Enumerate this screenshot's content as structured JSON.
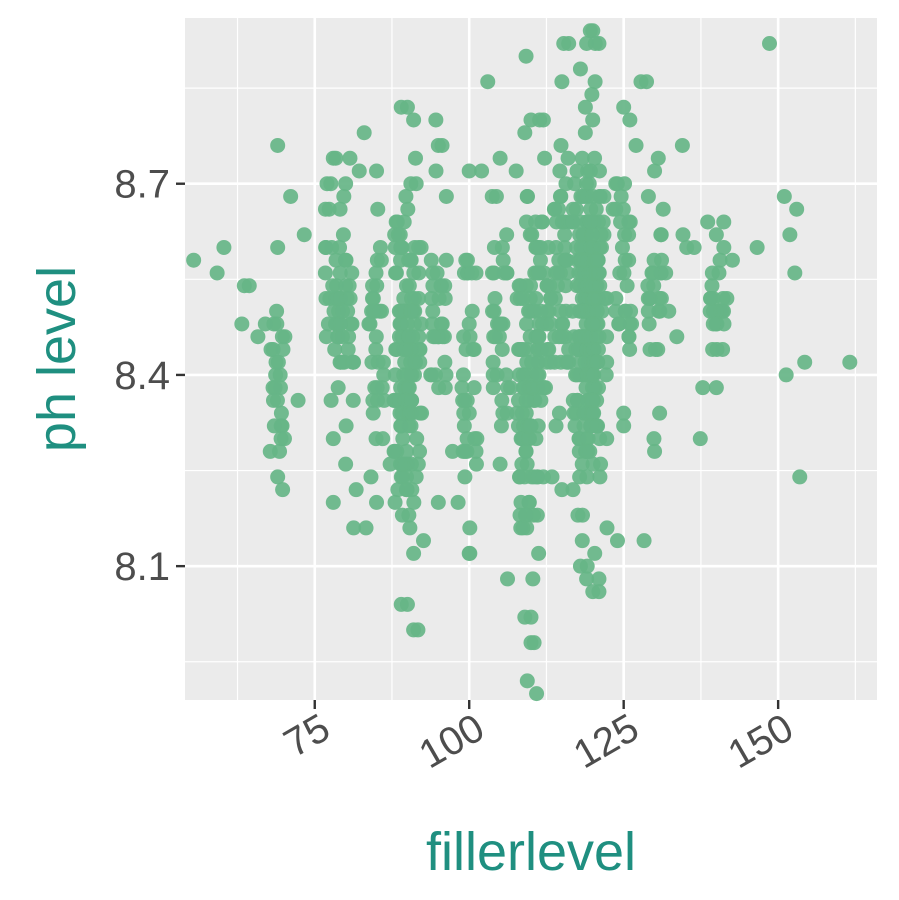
{
  "chart_data": {
    "type": "scatter",
    "xlabel": "fillerlevel",
    "ylabel": "ph level",
    "xlim": [
      54,
      166
    ],
    "ylim": [
      7.89,
      8.96
    ],
    "x_ticks": [
      75,
      100,
      125,
      150
    ],
    "y_ticks": [
      8.1,
      8.4,
      8.7
    ],
    "grid": true,
    "point_color": "#66b587",
    "background_color": "#ebebeb",
    "axis_title_color": "#1f8f80",
    "points": [
      [
        55.4,
        8.58
      ],
      [
        59.2,
        8.56
      ],
      [
        60.3,
        8.6
      ],
      [
        63.2,
        8.48
      ],
      [
        63.6,
        8.54
      ],
      [
        64.4,
        8.54
      ],
      [
        65.8,
        8.46
      ],
      [
        67.0,
        8.48
      ],
      [
        67.8,
        8.28
      ],
      [
        69.0,
        8.76
      ],
      [
        69.3,
        8.28
      ],
      [
        69.8,
        8.22
      ],
      [
        70.1,
        8.3
      ],
      [
        71.1,
        8.68
      ],
      [
        72.3,
        8.36
      ],
      [
        73.3,
        8.62
      ],
      [
        76.8,
        8.6
      ],
      [
        77.6,
        8.7
      ],
      [
        78.4,
        8.74
      ],
      [
        78.0,
        8.2
      ],
      [
        79.1,
        8.66
      ],
      [
        79.5,
        8.5
      ],
      [
        80.7,
        8.74
      ],
      [
        81.3,
        8.16
      ],
      [
        81.7,
        8.22
      ],
      [
        82.2,
        8.72
      ],
      [
        83.0,
        8.78
      ],
      [
        83.3,
        8.16
      ],
      [
        84.1,
        8.24
      ],
      [
        85.2,
        8.66
      ],
      [
        86.0,
        8.3
      ],
      [
        87.2,
        8.26
      ],
      [
        88.0,
        8.2
      ],
      [
        91.0,
        8.12
      ],
      [
        91.7,
        8.0
      ],
      [
        92.6,
        8.14
      ],
      [
        94.6,
        8.8
      ],
      [
        95.6,
        8.76
      ],
      [
        96.3,
        8.68
      ],
      [
        97.3,
        8.28
      ],
      [
        98.2,
        8.2
      ],
      [
        99.3,
        8.24
      ],
      [
        100.1,
        8.16
      ],
      [
        100.1,
        8.12
      ],
      [
        101.1,
        8.28
      ],
      [
        102.0,
        8.72
      ],
      [
        103.0,
        8.86
      ],
      [
        104.4,
        8.68
      ],
      [
        106.2,
        8.08
      ],
      [
        106.7,
        8.38
      ],
      [
        107.6,
        8.72
      ],
      [
        108.0,
        8.44
      ],
      [
        109.2,
        8.9
      ],
      [
        109.4,
        7.92
      ],
      [
        110.0,
        8.02
      ],
      [
        110.3,
        8.08
      ],
      [
        110.5,
        7.98
      ],
      [
        110.9,
        7.9
      ],
      [
        111.4,
        8.8
      ],
      [
        112.2,
        8.74
      ],
      [
        113.4,
        8.24
      ],
      [
        114.6,
        8.34
      ],
      [
        115.3,
        8.92
      ],
      [
        116.1,
        8.92
      ],
      [
        116.8,
        8.22
      ],
      [
        117.6,
        8.18
      ],
      [
        118.3,
        8.14
      ],
      [
        119.1,
        8.1
      ],
      [
        119.6,
        8.94
      ],
      [
        120.4,
        8.92
      ],
      [
        121.0,
        8.06
      ],
      [
        122.3,
        8.16
      ],
      [
        123.3,
        8.66
      ],
      [
        124.0,
        8.14
      ],
      [
        124.8,
        8.6
      ],
      [
        125.0,
        8.32
      ],
      [
        126.0,
        8.8
      ],
      [
        127.0,
        8.76
      ],
      [
        127.8,
        8.86
      ],
      [
        128.3,
        8.14
      ],
      [
        128.7,
        8.86
      ],
      [
        129.0,
        8.68
      ],
      [
        129.9,
        8.3
      ],
      [
        130.6,
        8.74
      ],
      [
        131.4,
        8.66
      ],
      [
        131.8,
        8.56
      ],
      [
        132.3,
        8.5
      ],
      [
        133.6,
        8.46
      ],
      [
        134.5,
        8.76
      ],
      [
        134.6,
        8.62
      ],
      [
        135.2,
        8.6
      ],
      [
        136.4,
        8.6
      ],
      [
        137.4,
        8.3
      ],
      [
        137.8,
        8.38
      ],
      [
        138.6,
        8.64
      ],
      [
        139.0,
        8.5
      ],
      [
        139.5,
        8.48
      ],
      [
        140.1,
        8.44
      ],
      [
        140.6,
        8.58
      ],
      [
        141.2,
        8.64
      ],
      [
        141.7,
        8.52
      ],
      [
        142.6,
        8.58
      ],
      [
        146.6,
        8.6
      ],
      [
        148.6,
        8.92
      ],
      [
        151.0,
        8.68
      ],
      [
        151.3,
        8.4
      ],
      [
        151.9,
        8.62
      ],
      [
        152.7,
        8.56
      ],
      [
        153.0,
        8.66
      ],
      [
        153.5,
        8.24
      ],
      [
        154.3,
        8.42
      ],
      [
        161.6,
        8.42
      ]
    ],
    "column_clusters": [
      {
        "x": 69,
        "count": 22,
        "y_min": 8.24,
        "y_max": 8.6
      },
      {
        "x": 78,
        "count": 28,
        "y_min": 8.3,
        "y_max": 8.74
      },
      {
        "x": 80,
        "count": 28,
        "y_min": 8.26,
        "y_max": 8.7
      },
      {
        "x": 85,
        "count": 30,
        "y_min": 8.2,
        "y_max": 8.72
      },
      {
        "x": 89,
        "count": 42,
        "y_min": 8.04,
        "y_max": 8.82
      },
      {
        "x": 90,
        "count": 50,
        "y_min": 8.04,
        "y_max": 8.82
      },
      {
        "x": 91,
        "count": 40,
        "y_min": 8.0,
        "y_max": 8.8
      },
      {
        "x": 95,
        "count": 30,
        "y_min": 8.2,
        "y_max": 8.76
      },
      {
        "x": 100,
        "count": 30,
        "y_min": 8.12,
        "y_max": 8.72
      },
      {
        "x": 105,
        "count": 32,
        "y_min": 8.26,
        "y_max": 8.74
      },
      {
        "x": 109,
        "count": 44,
        "y_min": 8.02,
        "y_max": 8.78
      },
      {
        "x": 110,
        "count": 52,
        "y_min": 7.98,
        "y_max": 8.8
      },
      {
        "x": 112,
        "count": 36,
        "y_min": 8.24,
        "y_max": 8.8
      },
      {
        "x": 115,
        "count": 42,
        "y_min": 8.22,
        "y_max": 8.86
      },
      {
        "x": 118,
        "count": 56,
        "y_min": 8.1,
        "y_max": 8.88
      },
      {
        "x": 119,
        "count": 64,
        "y_min": 8.08,
        "y_max": 8.92
      },
      {
        "x": 120,
        "count": 66,
        "y_min": 8.06,
        "y_max": 8.94
      },
      {
        "x": 121,
        "count": 50,
        "y_min": 8.08,
        "y_max": 8.92
      },
      {
        "x": 125,
        "count": 28,
        "y_min": 8.34,
        "y_max": 8.82
      },
      {
        "x": 130,
        "count": 24,
        "y_min": 8.28,
        "y_max": 8.72
      },
      {
        "x": 140,
        "count": 20,
        "y_min": 8.38,
        "y_max": 8.62
      }
    ]
  }
}
